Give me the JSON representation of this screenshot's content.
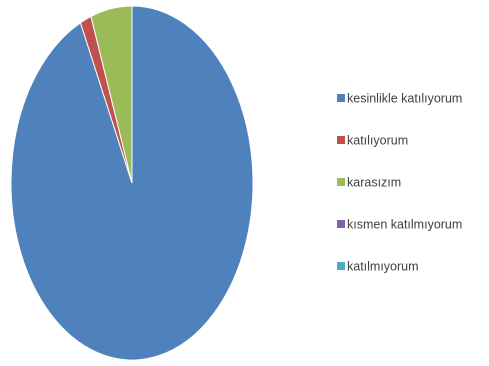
{
  "chart_data": {
    "type": "pie",
    "start_angle_deg": 0,
    "direction": "clockwise",
    "legend_position": "right",
    "slices": [
      {
        "label": "kesinlikle katılıyorum",
        "value": 93,
        "color": "#4F81BD"
      },
      {
        "label": "katılıyorum",
        "value": 1.5,
        "color": "#C0504D"
      },
      {
        "label": "karasızım",
        "value": 5.5,
        "color": "#9BBB59"
      },
      {
        "label": "kısmen katılmıyorum",
        "value": 0,
        "color": "#8064A2"
      },
      {
        "label": "katılmıyorum",
        "value": 0,
        "color": "#4BACC6"
      }
    ]
  }
}
